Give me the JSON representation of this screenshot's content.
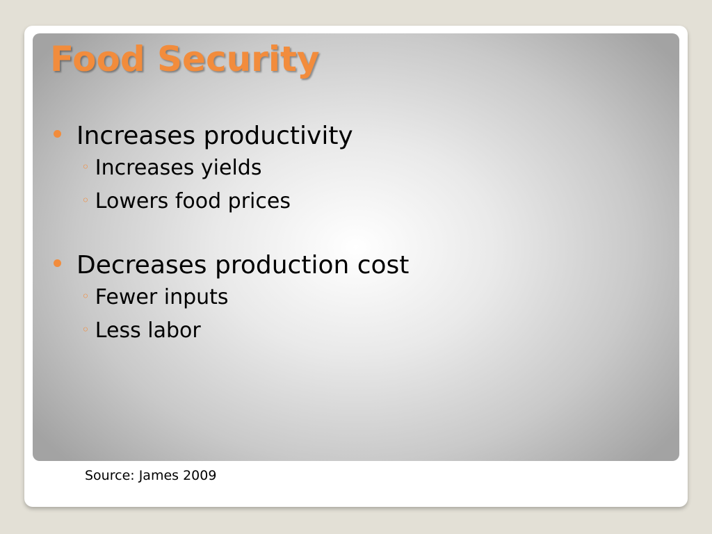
{
  "slide": {
    "title": "Food Security",
    "bullets": [
      {
        "text": "Increases productivity",
        "sub": [
          "Increases yields",
          "Lowers food prices"
        ]
      },
      {
        "text": "Decreases production cost",
        "sub": [
          "Fewer inputs",
          "Less labor"
        ]
      }
    ],
    "source": "Source: James 2009",
    "sub_marker": "◦"
  },
  "colors": {
    "accent": "#f28c3c",
    "background": "#e3e0d6"
  }
}
